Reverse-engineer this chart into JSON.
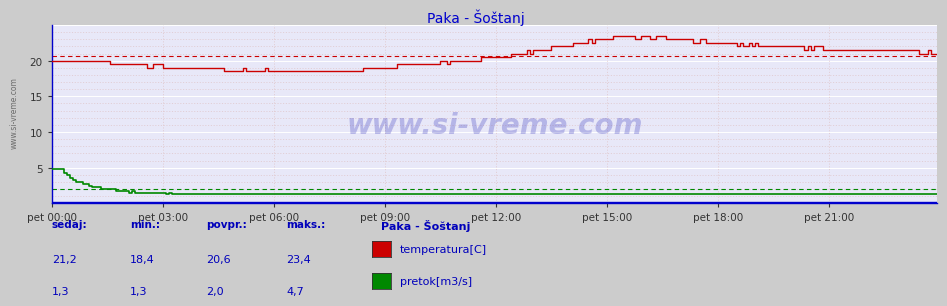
{
  "title": "Paka - Šoštanj",
  "fig_bg_color": "#cccccc",
  "plot_bg_color": "#e8e8f8",
  "grid_h_minor_color": "#ddaaaa",
  "grid_h_major_color": "#ffffff",
  "grid_v_color": "#ddaaaa",
  "xlim": [
    0,
    287
  ],
  "ylim": [
    0,
    25
  ],
  "y_ticks": [
    5,
    10,
    15,
    20
  ],
  "x_tick_positions": [
    0,
    36,
    72,
    108,
    144,
    180,
    216,
    252
  ],
  "x_tick_labels": [
    "pet 00:00",
    "pet 03:00",
    "pet 06:00",
    "pet 09:00",
    "pet 12:00",
    "pet 15:00",
    "pet 18:00",
    "pet 21:00"
  ],
  "temp_color": "#cc0000",
  "flow_color": "#008800",
  "blue_line_color": "#0000cc",
  "avg_temp": 20.6,
  "avg_flow": 2.0,
  "watermark": "www.si-vreme.com",
  "watermark_color": "#3333bb",
  "watermark_alpha": 0.28,
  "text_color": "#0000bb",
  "axis_color": "#0000cc",
  "left_label": "www.si-vreme.com",
  "legend_title": "Paka - Šoštanj",
  "stats_labels": [
    "sedaj:",
    "min.:",
    "povpr.:",
    "maks.:"
  ],
  "stats_temp": [
    "21,2",
    "18,4",
    "20,6",
    "23,4"
  ],
  "stats_flow": [
    "1,3",
    "1,3",
    "2,0",
    "4,7"
  ],
  "legend_items": [
    {
      "label": "temperatura[C]",
      "color": "#cc0000"
    },
    {
      "label": "pretok[m3/s]",
      "color": "#008800"
    }
  ]
}
